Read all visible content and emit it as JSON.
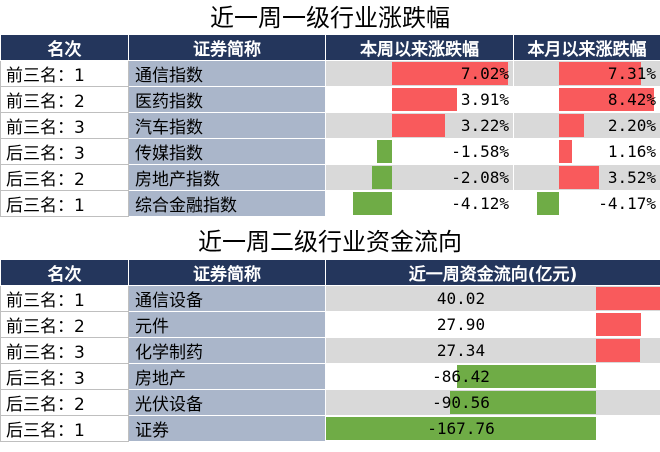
{
  "section1": {
    "title": "近一周一级行业涨跌幅",
    "headers": [
      "名次",
      "证券简称",
      "本周以来涨跌幅",
      "本月以来涨跌幅"
    ],
    "rows": [
      {
        "rank": "前三名：1",
        "name": "通信指数",
        "week": "7.02%",
        "week_value": 7.02,
        "month": "7.31%",
        "month_value": 7.31
      },
      {
        "rank": "前三名：2",
        "name": "医药指数",
        "week": "3.91%",
        "week_value": 3.91,
        "month": "8.42%",
        "month_value": 8.42
      },
      {
        "rank": "前三名：3",
        "name": "汽车指数",
        "week": "3.22%",
        "week_value": 3.22,
        "month": "2.20%",
        "month_value": 2.2
      },
      {
        "rank": "后三名：3",
        "name": "传媒指数",
        "week": "-1.58%",
        "week_value": -1.58,
        "month": "1.16%",
        "month_value": 1.16
      },
      {
        "rank": "后三名：2",
        "name": "房地产指数",
        "week": "-2.08%",
        "week_value": -2.08,
        "month": "3.52%",
        "month_value": 3.52
      },
      {
        "rank": "后三名：1",
        "name": "综合金融指数",
        "week": "-4.12%",
        "week_value": -4.12,
        "month": "-4.17%",
        "month_value": -4.17
      }
    ]
  },
  "section2": {
    "title": "近一周二级行业资金流向",
    "headers": [
      "名次",
      "证券简称",
      "近一周资金流向(亿元)"
    ],
    "rows": [
      {
        "rank": "前三名：1",
        "name": "通信设备",
        "flow": "40.02",
        "flow_value": 40.02
      },
      {
        "rank": "前三名：2",
        "name": "元件",
        "flow": "27.90",
        "flow_value": 27.9
      },
      {
        "rank": "前三名：3",
        "name": "化学制药",
        "flow": "27.34",
        "flow_value": 27.34
      },
      {
        "rank": "后三名：3",
        "name": "房地产",
        "flow": "-86.42",
        "flow_value": -86.42
      },
      {
        "rank": "后三名：2",
        "name": "光伏设备",
        "flow": "-90.56",
        "flow_value": -90.56
      },
      {
        "rank": "后三名：1",
        "name": "证券",
        "flow": "-167.76",
        "flow_value": -167.76
      }
    ]
  },
  "colors": {
    "header_bg": "#24365c",
    "name_bg": "#aab6ca",
    "positive_bar": "#f95a5c",
    "negative_bar": "#6fac46",
    "shade": "#d9d9d9"
  }
}
